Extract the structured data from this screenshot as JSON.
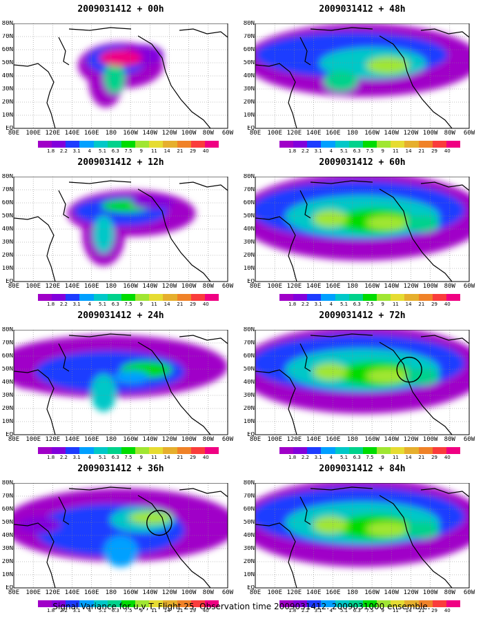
{
  "caption": "Signal Variance for u,v,T. Flight 25. Observation time 2009031412. 2009031000 ensemble.",
  "lat_labels": [
    "80N",
    "70N",
    "60N",
    "50N",
    "40N",
    "30N",
    "20N",
    "10N",
    "EQ"
  ],
  "lon_labels": [
    "80E",
    "100E",
    "120E",
    "140E",
    "160E",
    "180",
    "160W",
    "140W",
    "120W",
    "100W",
    "80W",
    "60W"
  ],
  "legend_labels": [
    "1.8",
    "2.2",
    "3.1",
    "4",
    "5.1",
    "6.3",
    "7.5",
    "9",
    "11",
    "14",
    "21",
    "29",
    "40"
  ],
  "legend_colors": [
    "#a000c8",
    "#8200dc",
    "#1e3cff",
    "#00a0ff",
    "#00c8c8",
    "#00d28c",
    "#00dc00",
    "#a0e632",
    "#e6dc32",
    "#e6af2d",
    "#f08228",
    "#fa3c3c",
    "#f00082"
  ],
  "panels": [
    {
      "title": "2009031412 + 00h",
      "circles": []
    },
    {
      "title": "2009031412 + 48h",
      "circles": []
    },
    {
      "title": "2009031412 + 12h",
      "circles": []
    },
    {
      "title": "2009031412 + 60h",
      "circles": []
    },
    {
      "title": "2009031412 + 24h",
      "circles": []
    },
    {
      "title": "2009031412 + 72h",
      "circles": [
        1
      ]
    },
    {
      "title": "2009031412 + 36h",
      "circles": [
        1
      ]
    },
    {
      "title": "2009031412 + 84h",
      "circles": []
    }
  ]
}
